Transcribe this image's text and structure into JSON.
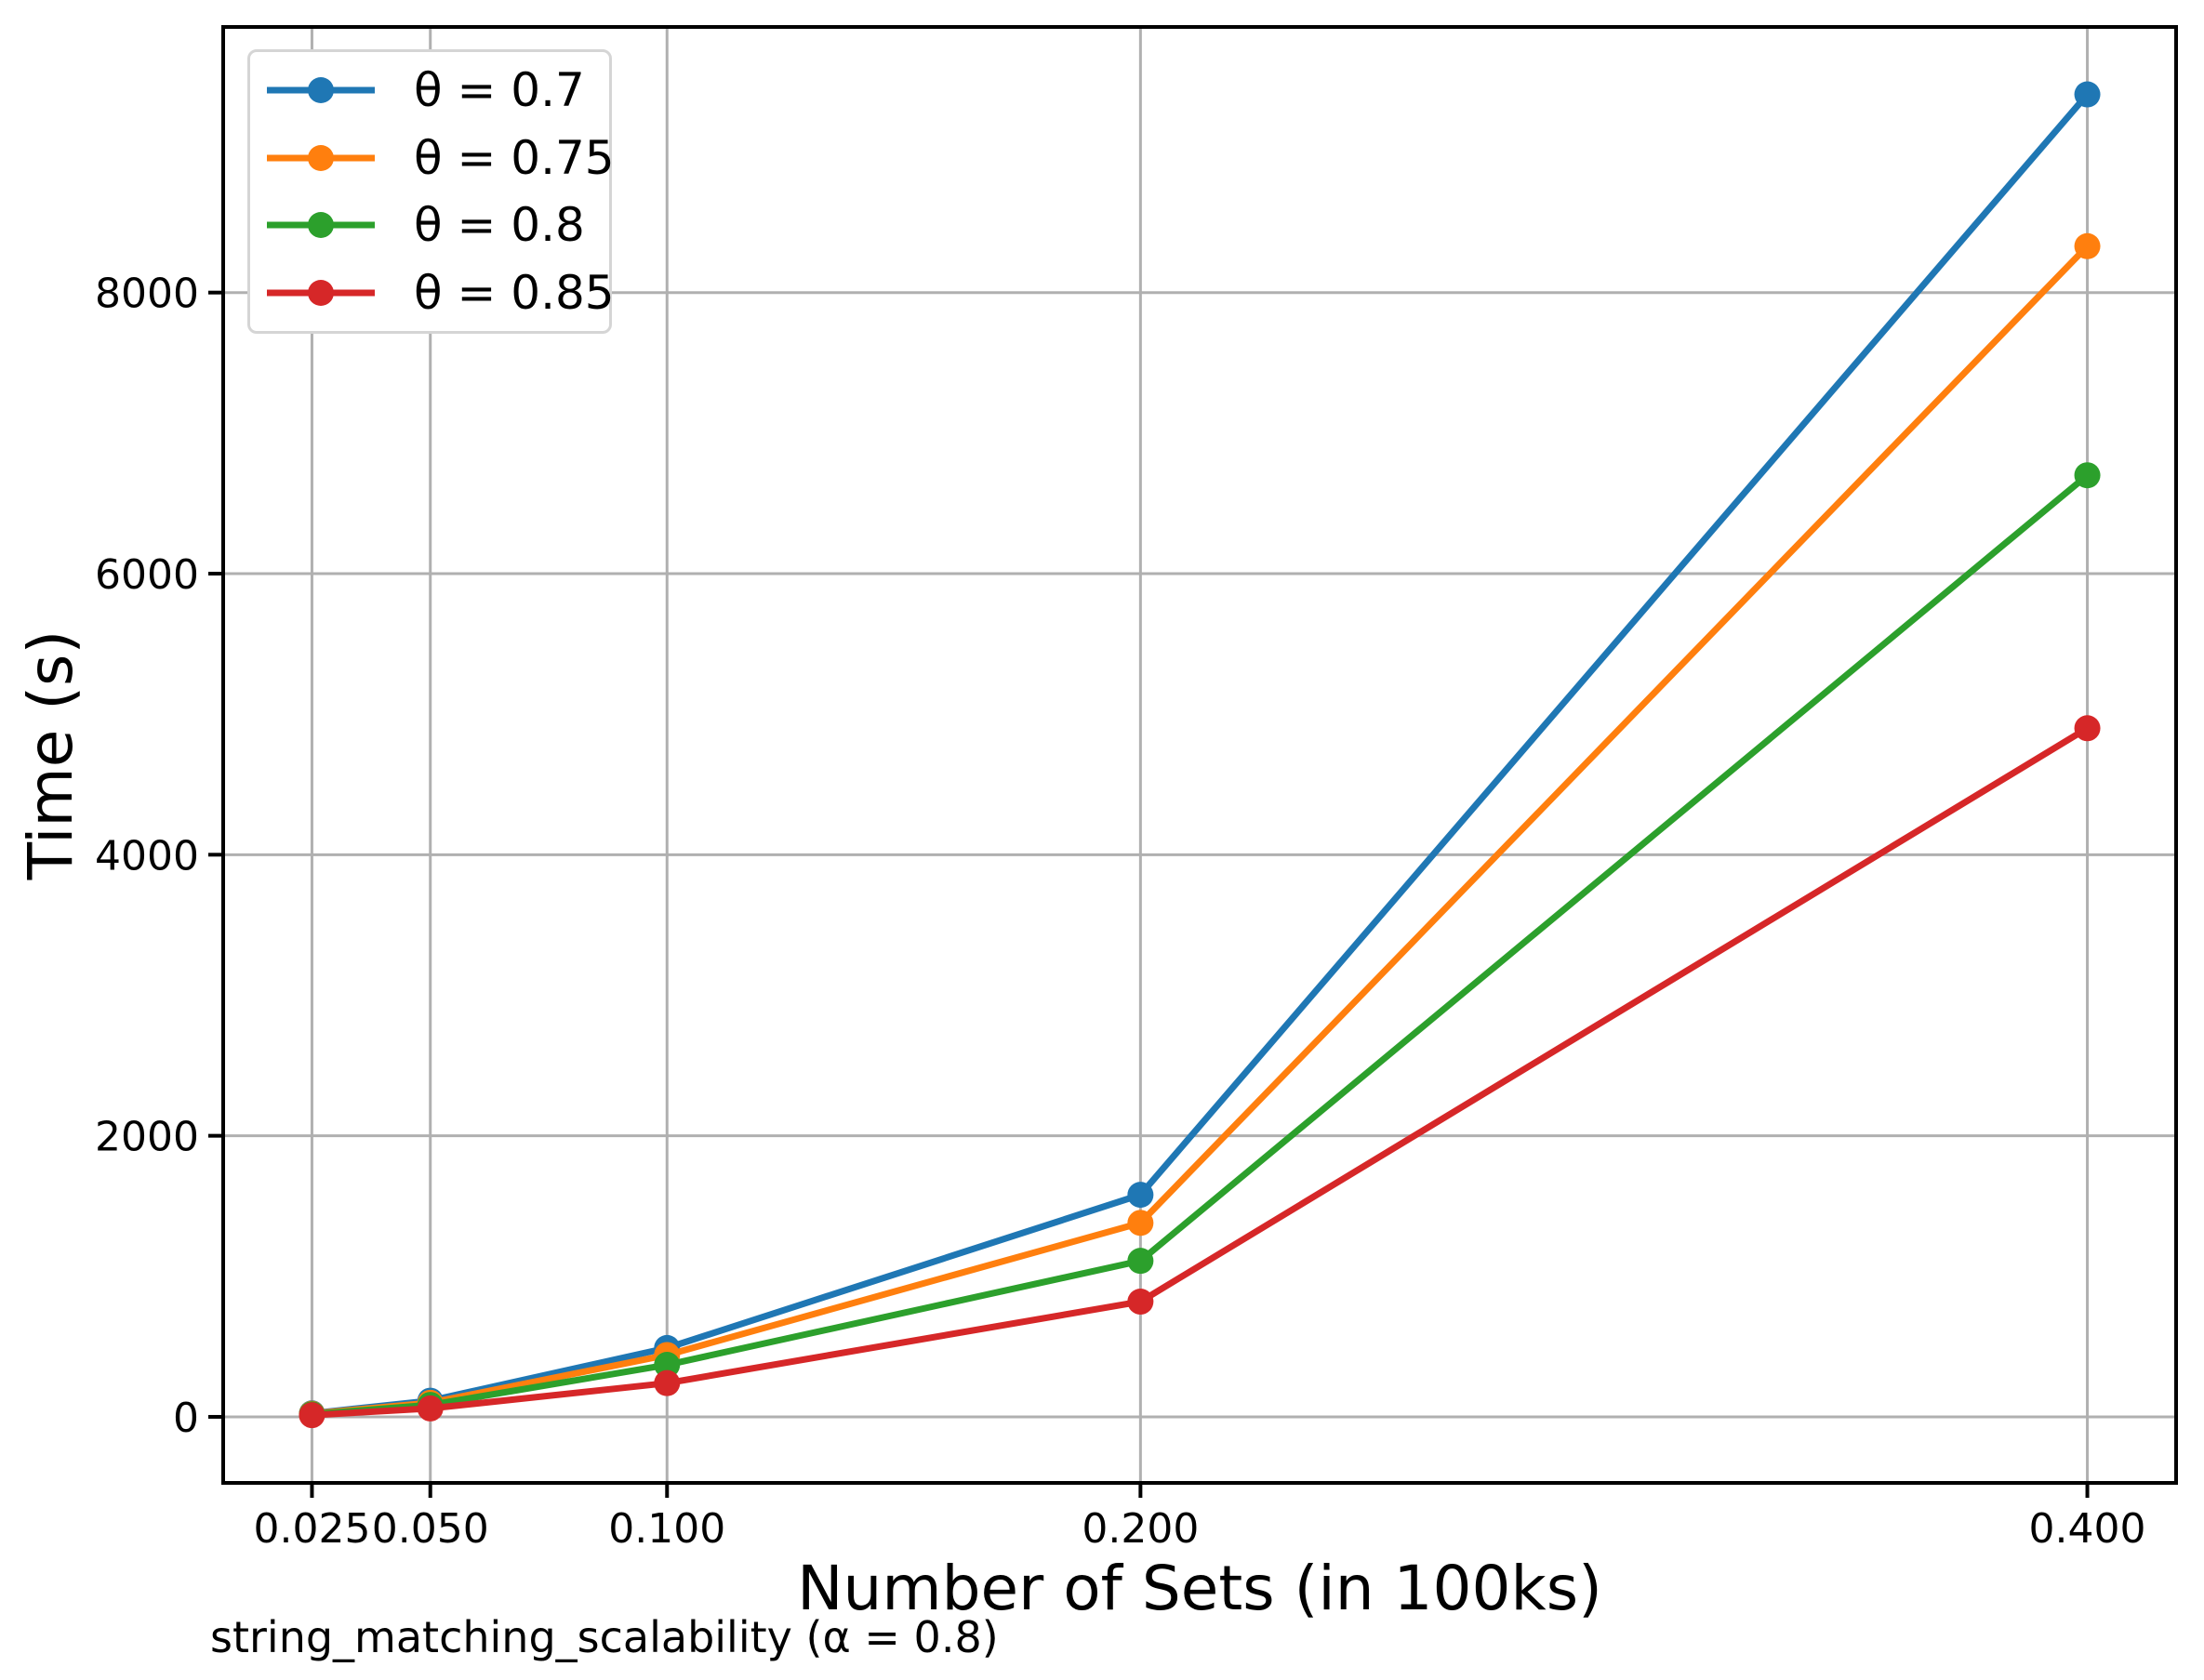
{
  "chart_data": {
    "type": "line",
    "xlabel": "Number of Sets (in 100ks)",
    "ylabel": "Time (s)",
    "caption": "string_matching_scalability (α = 0.8)",
    "x": [
      0.025,
      0.05,
      0.1,
      0.2,
      0.4
    ],
    "x_tick_labels": [
      "0.025",
      "0.050",
      "0.100",
      "0.200",
      "0.400"
    ],
    "y_ticks": [
      0,
      2000,
      4000,
      6000,
      8000
    ],
    "y_tick_labels": [
      "0",
      "2000",
      "4000",
      "6000",
      "8000"
    ],
    "xlim": [
      0.00625,
      0.41875
    ],
    "ylim": [
      -470,
      9890
    ],
    "grid": true,
    "legend_position": "upper-left",
    "series": [
      {
        "name": "θ = 0.7",
        "color": "#1f77b4",
        "values": [
          25,
          115,
          490,
          1580,
          9410
        ]
      },
      {
        "name": "θ = 0.75",
        "color": "#ff7f0e",
        "values": [
          22,
          100,
          440,
          1380,
          8330
        ]
      },
      {
        "name": "θ = 0.8",
        "color": "#2ca02c",
        "values": [
          18,
          85,
          370,
          1110,
          6700
        ]
      },
      {
        "name": "θ = 0.85",
        "color": "#d62728",
        "values": [
          12,
          60,
          240,
          820,
          4900
        ]
      }
    ],
    "colors": {
      "grid": "#b0b0b0",
      "spine": "#000000",
      "background": "#ffffff",
      "legend_border": "#d5d5d5",
      "text": "#000000"
    }
  }
}
